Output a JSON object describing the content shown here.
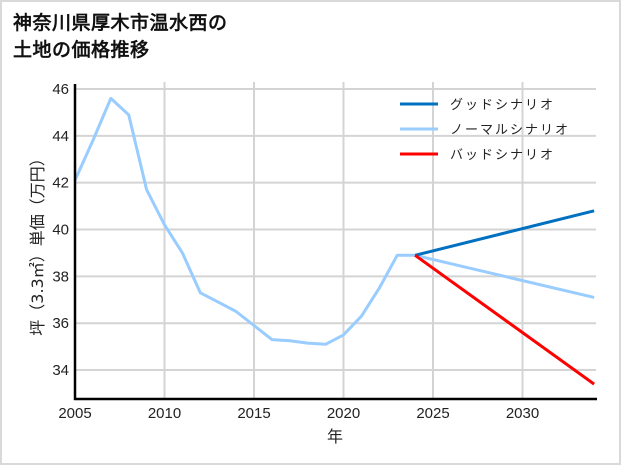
{
  "title_line1": "神奈川県厚木市温水西の",
  "title_line2": "土地の価格推移",
  "chart_data": {
    "type": "line",
    "title": "神奈川県厚木市温水西の土地の価格推移",
    "xlabel": "年",
    "ylabel": "坪（3.3㎡）単価（万円）",
    "xlim": [
      2005,
      2034
    ],
    "ylim": [
      32.8,
      46.2
    ],
    "x_ticks": [
      2005,
      2010,
      2015,
      2020,
      2025,
      2030
    ],
    "y_ticks": [
      34,
      36,
      38,
      40,
      42,
      44,
      46
    ],
    "grid": true,
    "legend_position": "upper right",
    "series": [
      {
        "name": "グッドシナリオ",
        "color": "#0070c0",
        "x": [
          2024,
          2034
        ],
        "values": [
          38.9,
          40.8
        ]
      },
      {
        "name": "ノーマルシナリオ",
        "color": "#99ccff",
        "x": [
          2005,
          2006,
          2007,
          2008,
          2009,
          2010,
          2011,
          2012,
          2013,
          2014,
          2015,
          2016,
          2017,
          2018,
          2019,
          2020,
          2021,
          2022,
          2023,
          2024,
          2034
        ],
        "values": [
          42.1,
          43.8,
          45.6,
          44.9,
          41.7,
          40.2,
          39.0,
          37.3,
          36.9,
          36.5,
          35.9,
          35.3,
          35.25,
          35.15,
          35.1,
          35.5,
          36.3,
          37.5,
          38.9,
          38.9,
          37.1
        ]
      },
      {
        "name": "バッドシナリオ",
        "color": "#ff0000",
        "x": [
          2024,
          2034
        ],
        "values": [
          38.9,
          33.4
        ]
      }
    ]
  }
}
